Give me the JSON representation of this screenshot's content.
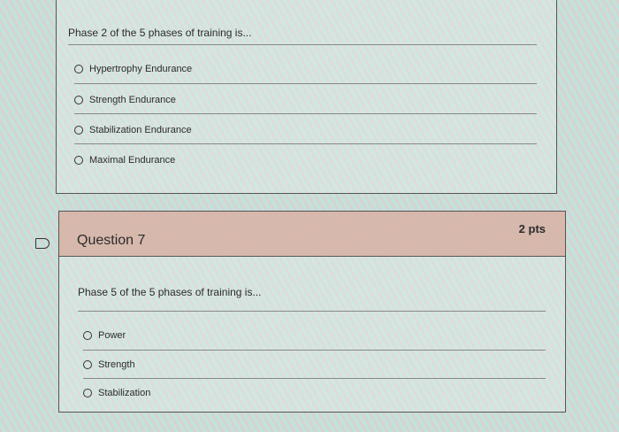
{
  "question6": {
    "text": "Phase 2 of the 5 phases of training is...",
    "options": [
      "Hypertrophy Endurance",
      "Strength Endurance",
      "Stabilization Endurance",
      "Maximal Endurance"
    ]
  },
  "question7": {
    "title": "Question 7",
    "points": "2 pts",
    "text": "Phase 5 of the 5 phases of training is...",
    "options": [
      "Power",
      "Strength",
      "Stabilization"
    ]
  }
}
